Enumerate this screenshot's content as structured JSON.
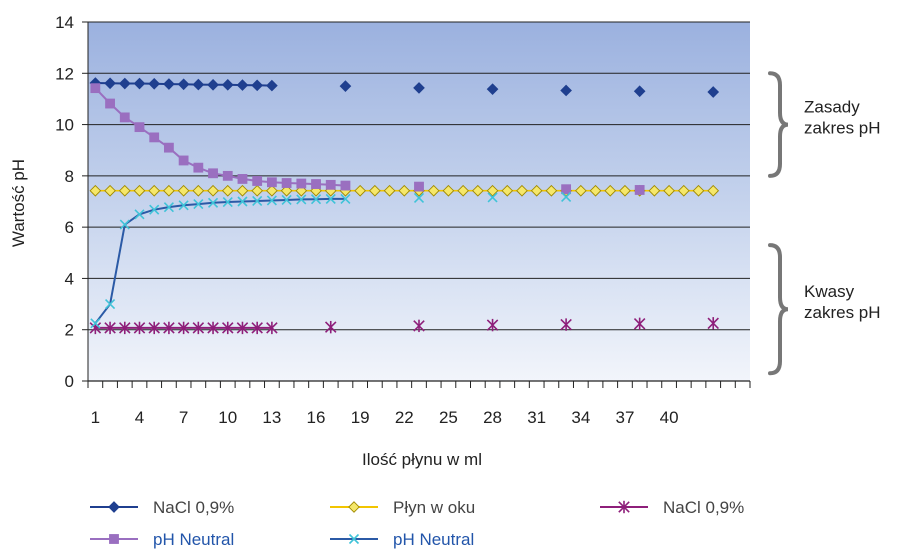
{
  "chart_data": {
    "type": "line",
    "title": "",
    "xlabel": "Ilość płynu w ml",
    "ylabel": "Wartość pH",
    "ylim": [
      0,
      14
    ],
    "yticks": [
      0,
      2,
      4,
      6,
      8,
      10,
      12,
      14
    ],
    "x_slots": 45,
    "x_tick_labels": [
      "1",
      "4",
      "7",
      "10",
      "13",
      "16",
      "19",
      "22",
      "25",
      "28",
      "31",
      "34",
      "37",
      "40"
    ],
    "x_tick_label_slots": [
      1,
      4,
      7,
      10,
      13,
      16,
      19,
      22,
      25,
      28,
      31,
      34,
      37,
      40
    ],
    "grid": "horizontal",
    "legend_position": "bottom",
    "series": [
      {
        "name": "NaCl 0,9%",
        "color": "#1f3f8f",
        "marker": "diamond",
        "line": true,
        "points": [
          [
            1,
            11.62
          ],
          [
            2,
            11.61
          ],
          [
            3,
            11.6
          ],
          [
            4,
            11.6
          ],
          [
            5,
            11.59
          ],
          [
            6,
            11.58
          ],
          [
            7,
            11.57
          ],
          [
            8,
            11.56
          ],
          [
            9,
            11.55
          ],
          [
            10,
            11.55
          ],
          [
            11,
            11.54
          ],
          [
            12,
            11.53
          ],
          [
            13,
            11.52
          ]
        ]
      },
      {
        "name": "",
        "color": "#1f3f8f",
        "marker": "diamond",
        "line": false,
        "points": [
          [
            18,
            11.5
          ],
          [
            23,
            11.43
          ],
          [
            28,
            11.38
          ],
          [
            33,
            11.33
          ],
          [
            38,
            11.3
          ],
          [
            43,
            11.27
          ]
        ]
      },
      {
        "name": "Płyn w oku",
        "color": "#f2c500",
        "marker_fill": "#f5e76a",
        "marker_stroke": "#a08a00",
        "marker": "diamond",
        "line": true,
        "points": [
          [
            1,
            7.42
          ],
          [
            2,
            7.42
          ],
          [
            3,
            7.42
          ],
          [
            4,
            7.42
          ],
          [
            5,
            7.42
          ],
          [
            6,
            7.42
          ],
          [
            7,
            7.42
          ],
          [
            8,
            7.42
          ],
          [
            9,
            7.42
          ],
          [
            10,
            7.42
          ],
          [
            11,
            7.42
          ],
          [
            12,
            7.42
          ],
          [
            13,
            7.42
          ],
          [
            14,
            7.42
          ],
          [
            15,
            7.42
          ],
          [
            16,
            7.42
          ],
          [
            17,
            7.42
          ],
          [
            18,
            7.42
          ],
          [
            19,
            7.42
          ],
          [
            20,
            7.42
          ],
          [
            21,
            7.42
          ],
          [
            22,
            7.42
          ],
          [
            23,
            7.42
          ],
          [
            24,
            7.42
          ],
          [
            25,
            7.42
          ],
          [
            26,
            7.42
          ],
          [
            27,
            7.42
          ],
          [
            28,
            7.42
          ],
          [
            29,
            7.42
          ],
          [
            30,
            7.42
          ],
          [
            31,
            7.42
          ],
          [
            32,
            7.42
          ],
          [
            33,
            7.42
          ],
          [
            34,
            7.42
          ],
          [
            35,
            7.42
          ],
          [
            36,
            7.42
          ],
          [
            37,
            7.42
          ],
          [
            38,
            7.42
          ],
          [
            39,
            7.42
          ],
          [
            40,
            7.42
          ],
          [
            41,
            7.42
          ],
          [
            42,
            7.42
          ],
          [
            43,
            7.42
          ]
        ]
      },
      {
        "name": "NaCl 0,9%",
        "color": "#8e1f7a",
        "marker": "star",
        "line": true,
        "points": [
          [
            1,
            2.07
          ],
          [
            2,
            2.07
          ],
          [
            3,
            2.07
          ],
          [
            4,
            2.07
          ],
          [
            5,
            2.07
          ],
          [
            6,
            2.07
          ],
          [
            7,
            2.07
          ],
          [
            8,
            2.07
          ],
          [
            9,
            2.07
          ],
          [
            10,
            2.07
          ],
          [
            11,
            2.07
          ],
          [
            12,
            2.07
          ],
          [
            13,
            2.07
          ]
        ]
      },
      {
        "name": "",
        "color": "#8e1f7a",
        "marker": "star",
        "line": false,
        "points": [
          [
            17,
            2.1
          ],
          [
            23,
            2.15
          ],
          [
            28,
            2.18
          ],
          [
            33,
            2.2
          ],
          [
            38,
            2.23
          ],
          [
            43,
            2.25
          ]
        ]
      },
      {
        "name": "pH Neutral",
        "color": "#9a6fc0",
        "marker": "square",
        "line": true,
        "points": [
          [
            1,
            11.42
          ],
          [
            2,
            10.82
          ],
          [
            3,
            10.28
          ],
          [
            4,
            9.9
          ],
          [
            5,
            9.5
          ],
          [
            6,
            9.1
          ],
          [
            7,
            8.6
          ],
          [
            8,
            8.32
          ],
          [
            9,
            8.1
          ],
          [
            10,
            8.0
          ],
          [
            11,
            7.88
          ],
          [
            12,
            7.8
          ],
          [
            13,
            7.75
          ],
          [
            14,
            7.72
          ],
          [
            15,
            7.7
          ],
          [
            16,
            7.68
          ],
          [
            17,
            7.65
          ],
          [
            18,
            7.62
          ]
        ]
      },
      {
        "name": "",
        "color": "#9a6fc0",
        "marker": "square",
        "line": false,
        "points": [
          [
            23,
            7.58
          ],
          [
            33,
            7.48
          ],
          [
            38,
            7.45
          ]
        ]
      },
      {
        "name": "pH Neutral",
        "color": "#2b5aa6",
        "marker_stroke": "#3fc3d8",
        "marker": "x",
        "line": true,
        "points": [
          [
            1,
            2.25
          ],
          [
            2,
            3.0
          ],
          [
            3,
            6.1
          ],
          [
            4,
            6.5
          ],
          [
            5,
            6.68
          ],
          [
            6,
            6.78
          ],
          [
            7,
            6.85
          ],
          [
            8,
            6.9
          ],
          [
            9,
            6.95
          ],
          [
            10,
            6.98
          ],
          [
            11,
            7.0
          ],
          [
            12,
            7.02
          ],
          [
            13,
            7.04
          ],
          [
            14,
            7.06
          ],
          [
            15,
            7.08
          ],
          [
            16,
            7.09
          ],
          [
            17,
            7.1
          ],
          [
            18,
            7.1
          ]
        ]
      },
      {
        "name": "",
        "color": "#3fc3d8",
        "marker": "x",
        "line": false,
        "points": [
          [
            23,
            7.14
          ],
          [
            28,
            7.16
          ],
          [
            33,
            7.18
          ]
        ]
      }
    ],
    "annotations": [
      {
        "lines": [
          "Zasady",
          "zakres pH"
        ],
        "y_range": [
          8,
          12
        ]
      },
      {
        "lines": [
          "Kwasy",
          "zakres pH"
        ],
        "y_range": [
          0.3,
          5.3
        ]
      }
    ]
  }
}
